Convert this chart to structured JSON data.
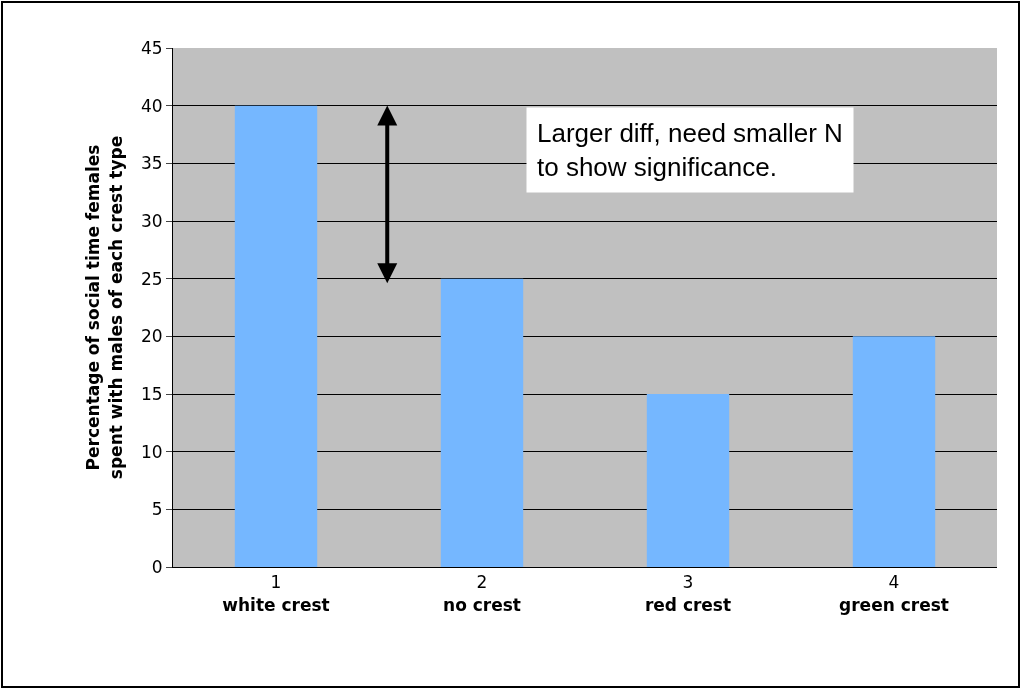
{
  "chart_data": {
    "type": "bar",
    "categories": [
      "1\nwhite crest",
      "2\nno crest",
      "3\nred crest",
      "4\ngreen crest"
    ],
    "values": [
      40,
      25,
      15,
      20
    ],
    "color": "#75b7ff",
    "ylabel": "Percentage of social time females\nspent with males of each crest type",
    "ylim": [
      0,
      45
    ],
    "yticks": [
      0,
      5,
      10,
      15,
      20,
      25,
      30,
      35,
      40,
      45
    ],
    "grid": "y",
    "annotations": [
      "Larger diff, need smaller N\nto show significance."
    ]
  }
}
